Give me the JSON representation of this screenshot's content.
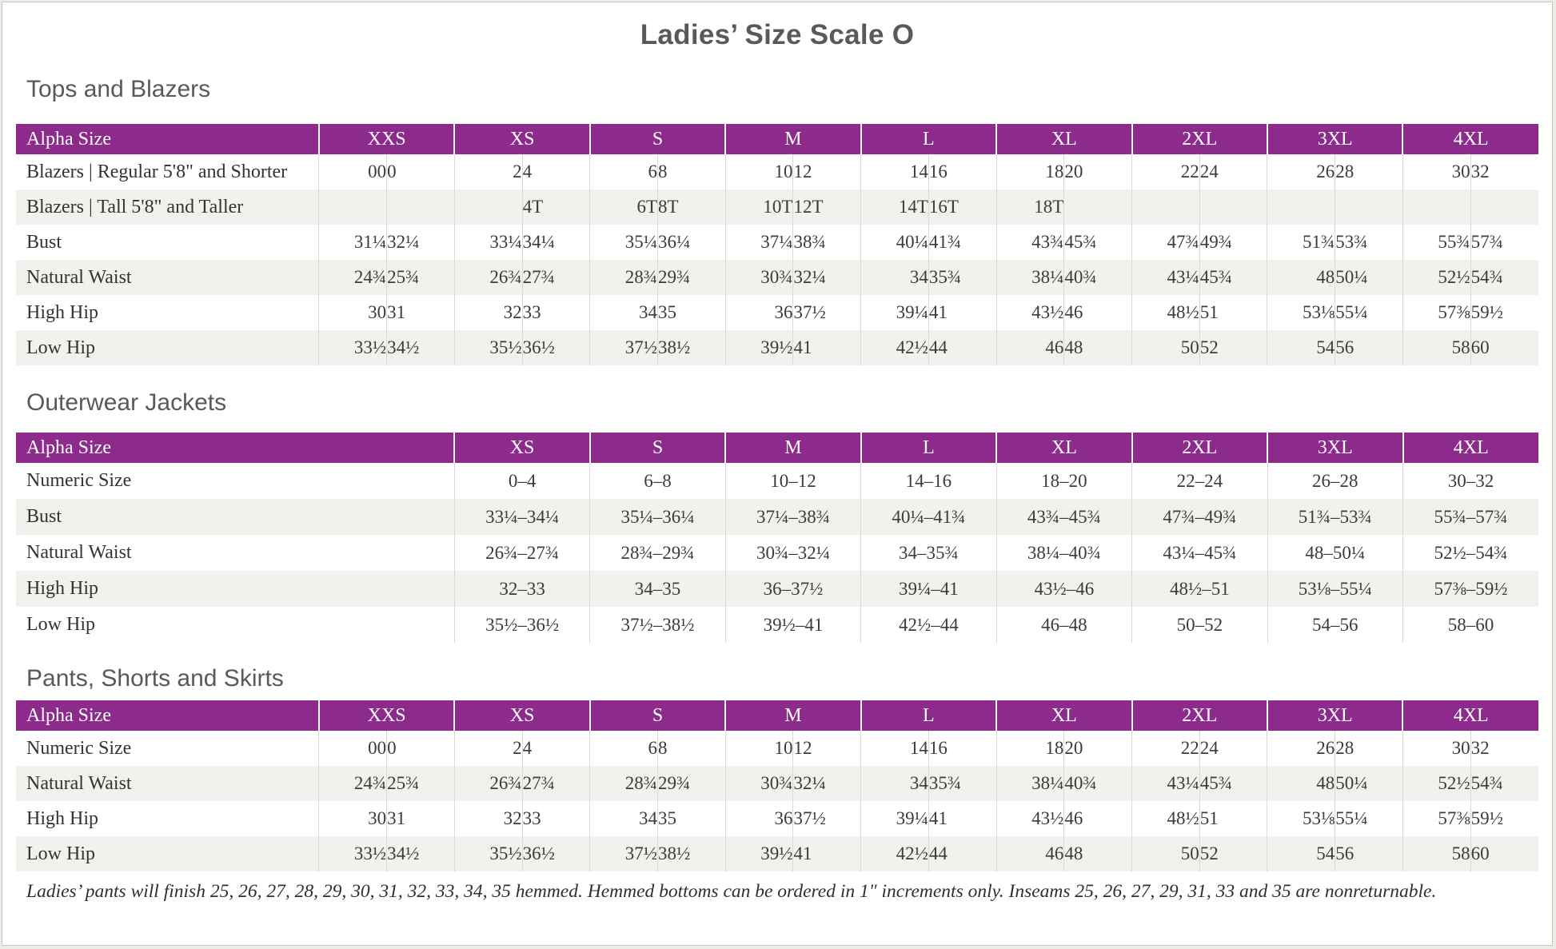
{
  "page": {
    "title": "Ladies’ Size Scale O",
    "footnote": "Ladies’ pants will finish 25, 26, 27, 28, 29, 30, 31, 32, 33, 34, 35 hemmed. Hemmed bottoms can be ordered in 1\" increments only. Inseams 25, 26, 27, 29, 31, 33 and 35 are nonreturnable."
  },
  "colors": {
    "header_purple": "#8c2b8c",
    "row_stripe": "#f2f1ee",
    "heading_gray": "#595959",
    "text_dark": "#3b3b3b"
  },
  "tables": [
    {
      "id": "tops-and-blazers",
      "section_title": "Tops and Blazers",
      "header_label": "Alpha Size",
      "split": true,
      "sizes": [
        "XXS",
        "XS",
        "S",
        "M",
        "L",
        "XL",
        "2XL",
        "3XL",
        "4XL"
      ],
      "rows": [
        {
          "label": "Blazers | Regular 5'8\" and Shorter",
          "values": [
            [
              "00",
              "0"
            ],
            [
              "2",
              "4"
            ],
            [
              "6",
              "8"
            ],
            [
              "10",
              "12"
            ],
            [
              "14",
              "16"
            ],
            [
              "18",
              "20"
            ],
            [
              "22",
              "24"
            ],
            [
              "26",
              "28"
            ],
            [
              "30",
              "32"
            ]
          ]
        },
        {
          "label": "Blazers | Tall 5'8\" and Taller",
          "values": [
            [
              "",
              ""
            ],
            [
              "",
              "4T"
            ],
            [
              "6T",
              "8T"
            ],
            [
              "10T",
              "12T"
            ],
            [
              "14T",
              "16T"
            ],
            [
              "18T",
              ""
            ],
            [
              "",
              ""
            ],
            [
              "",
              ""
            ],
            [
              "",
              ""
            ]
          ]
        },
        {
          "label": "Bust",
          "values": [
            [
              "31¼",
              "32¼"
            ],
            [
              "33¼",
              "34¼"
            ],
            [
              "35¼",
              "36¼"
            ],
            [
              "37¼",
              "38¾"
            ],
            [
              "40¼",
              "41¾"
            ],
            [
              "43¾",
              "45¾"
            ],
            [
              "47¾",
              "49¾"
            ],
            [
              "51¾",
              "53¾"
            ],
            [
              "55¾",
              "57¾"
            ]
          ]
        },
        {
          "label": "Natural Waist",
          "values": [
            [
              "24¾",
              "25¾"
            ],
            [
              "26¾",
              "27¾"
            ],
            [
              "28¾",
              "29¾"
            ],
            [
              "30¾",
              "32¼"
            ],
            [
              "34",
              "35¾"
            ],
            [
              "38¼",
              "40¾"
            ],
            [
              "43¼",
              "45¾"
            ],
            [
              "48",
              "50¼"
            ],
            [
              "52½",
              "54¾"
            ]
          ]
        },
        {
          "label": "High Hip",
          "values": [
            [
              "30",
              "31"
            ],
            [
              "32",
              "33"
            ],
            [
              "34",
              "35"
            ],
            [
              "36",
              "37½"
            ],
            [
              "39¼",
              "41"
            ],
            [
              "43½",
              "46"
            ],
            [
              "48½",
              "51"
            ],
            [
              "53⅛",
              "55¼"
            ],
            [
              "57⅜",
              "59½"
            ]
          ]
        },
        {
          "label": "Low Hip",
          "values": [
            [
              "33½",
              "34½"
            ],
            [
              "35½",
              "36½"
            ],
            [
              "37½",
              "38½"
            ],
            [
              "39½",
              "41"
            ],
            [
              "42½",
              "44"
            ],
            [
              "46",
              "48"
            ],
            [
              "50",
              "52"
            ],
            [
              "54",
              "56"
            ],
            [
              "58",
              "60"
            ]
          ]
        }
      ]
    },
    {
      "id": "outerwear-jackets",
      "section_title": "Outerwear Jackets",
      "header_label": "Alpha Size",
      "split": false,
      "sizes": [
        "XS",
        "S",
        "M",
        "L",
        "XL",
        "2XL",
        "3XL",
        "4XL"
      ],
      "rows": [
        {
          "label": "Numeric Size",
          "values": [
            "0–4",
            "6–8",
            "10–12",
            "14–16",
            "18–20",
            "22–24",
            "26–28",
            "30–32"
          ]
        },
        {
          "label": "Bust",
          "values": [
            "33¼–34¼",
            "35¼–36¼",
            "37¼–38¾",
            "40¼–41¾",
            "43¾–45¾",
            "47¾–49¾",
            "51¾–53¾",
            "55¾–57¾"
          ]
        },
        {
          "label": "Natural Waist",
          "values": [
            "26¾–27¾",
            "28¾–29¾",
            "30¾–32¼",
            "34–35¾",
            "38¼–40¾",
            "43¼–45¾",
            "48–50¼",
            "52½–54¾"
          ]
        },
        {
          "label": "High Hip",
          "values": [
            "32–33",
            "34–35",
            "36–37½",
            "39¼–41",
            "43½–46",
            "48½–51",
            "53⅛–55¼",
            "57⅜–59½"
          ]
        },
        {
          "label": "Low Hip",
          "values": [
            "35½–36½",
            "37½–38½",
            "39½–41",
            "42½–44",
            "46–48",
            "50–52",
            "54–56",
            "58–60"
          ]
        }
      ]
    },
    {
      "id": "pants-shorts-skirts",
      "section_title": "Pants, Shorts and Skirts",
      "header_label": "Alpha Size",
      "split": true,
      "sizes": [
        "XXS",
        "XS",
        "S",
        "M",
        "L",
        "XL",
        "2XL",
        "3XL",
        "4XL"
      ],
      "rows": [
        {
          "label": "Numeric Size",
          "values": [
            [
              "00",
              "0"
            ],
            [
              "2",
              "4"
            ],
            [
              "6",
              "8"
            ],
            [
              "10",
              "12"
            ],
            [
              "14",
              "16"
            ],
            [
              "18",
              "20"
            ],
            [
              "22",
              "24"
            ],
            [
              "26",
              "28"
            ],
            [
              "30",
              "32"
            ]
          ]
        },
        {
          "label": "Natural Waist",
          "values": [
            [
              "24¾",
              "25¾"
            ],
            [
              "26¾",
              "27¾"
            ],
            [
              "28¾",
              "29¾"
            ],
            [
              "30¾",
              "32¼"
            ],
            [
              "34",
              "35¾"
            ],
            [
              "38¼",
              "40¾"
            ],
            [
              "43¼",
              "45¾"
            ],
            [
              "48",
              "50¼"
            ],
            [
              "52½",
              "54¾"
            ]
          ]
        },
        {
          "label": "High Hip",
          "values": [
            [
              "30",
              "31"
            ],
            [
              "32",
              "33"
            ],
            [
              "34",
              "35"
            ],
            [
              "36",
              "37½"
            ],
            [
              "39¼",
              "41"
            ],
            [
              "43½",
              "46"
            ],
            [
              "48½",
              "51"
            ],
            [
              "53⅛",
              "55¼"
            ],
            [
              "57⅜",
              "59½"
            ]
          ]
        },
        {
          "label": "Low Hip",
          "values": [
            [
              "33½",
              "34½"
            ],
            [
              "35½",
              "36½"
            ],
            [
              "37½",
              "38½"
            ],
            [
              "39½",
              "41"
            ],
            [
              "42½",
              "44"
            ],
            [
              "46",
              "48"
            ],
            [
              "50",
              "52"
            ],
            [
              "54",
              "56"
            ],
            [
              "58",
              "60"
            ]
          ]
        }
      ]
    }
  ]
}
